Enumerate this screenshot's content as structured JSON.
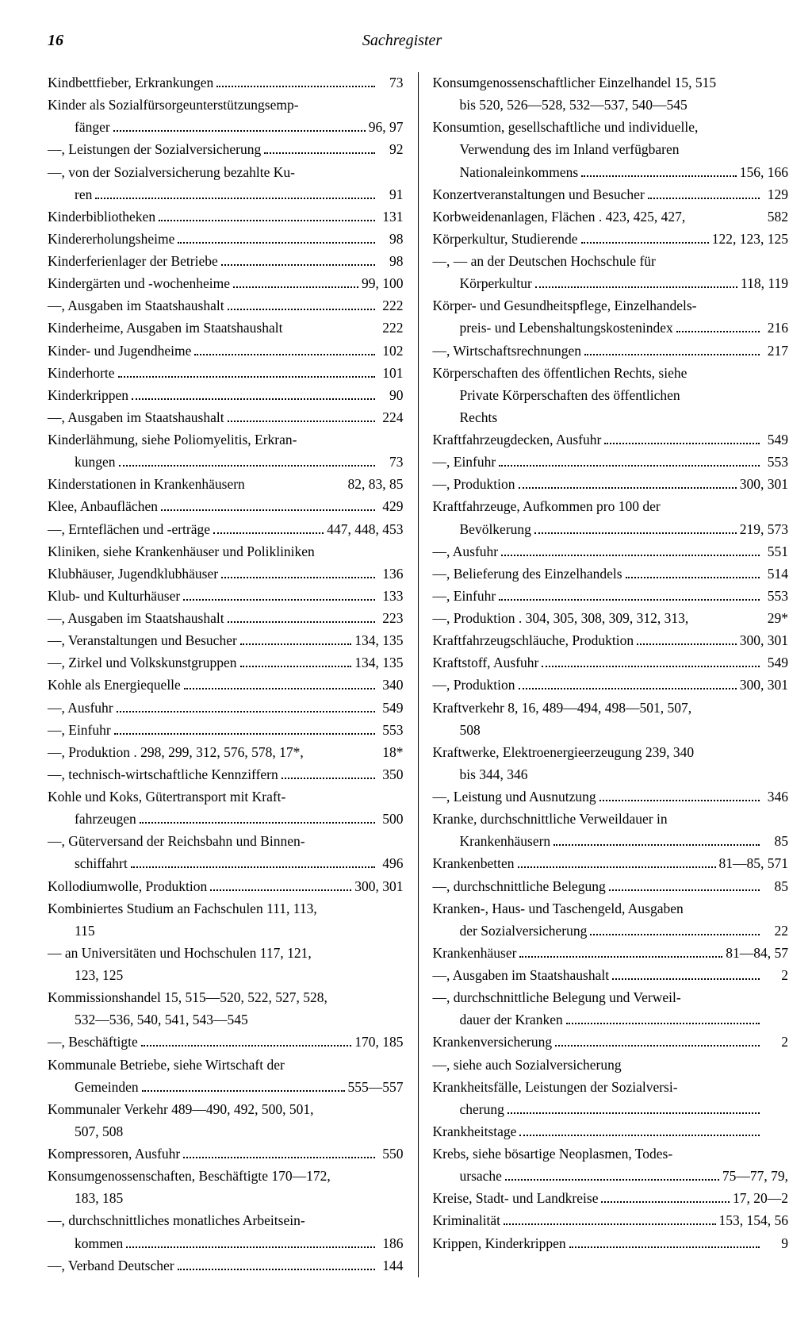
{
  "header": {
    "page": "16",
    "title": "Sachregister"
  },
  "left": [
    {
      "t": "Kindbettfieber, Erkrankungen",
      "p": "73"
    },
    {
      "t": "Kinder als Sozialfürsorgeunterstützungsemp-",
      "nf": true
    },
    {
      "t": "fänger",
      "p": "96, 97",
      "i": true
    },
    {
      "t": "—, Leistungen der Sozialversicherung",
      "p": "92"
    },
    {
      "t": "—, von der Sozialversicherung bezahlte Ku-",
      "nf": true
    },
    {
      "t": "ren",
      "p": "91",
      "i": true
    },
    {
      "t": "Kinderbibliotheken",
      "p": "131"
    },
    {
      "t": "Kindererholungsheime",
      "p": "98"
    },
    {
      "t": "Kinderferienlager der Betriebe",
      "p": "98"
    },
    {
      "t": "Kindergärten und -wochenheime",
      "p": "99, 100"
    },
    {
      "t": "—, Ausgaben im Staatshaushalt",
      "p": "222"
    },
    {
      "t": "Kinderheime, Ausgaben im Staatshaushalt",
      "p": "222",
      "nd": true
    },
    {
      "t": "Kinder- und Jugendheime",
      "p": "102"
    },
    {
      "t": "Kinderhorte",
      "p": "101"
    },
    {
      "t": "Kinderkrippen",
      "p": "90"
    },
    {
      "t": "—, Ausgaben im Staatshaushalt",
      "p": "224"
    },
    {
      "t": "Kinderlähmung, siehe Poliomyelitis, Erkran-",
      "nf": true
    },
    {
      "t": "kungen",
      "p": "73",
      "i": true
    },
    {
      "t": "Kinderstationen in Krankenhäusern",
      "p": "82, 83, 85",
      "nd": true
    },
    {
      "t": "Klee, Anbauflächen",
      "p": "429"
    },
    {
      "t": "—, Ernteflächen und -erträge",
      "p": "447, 448, 453"
    },
    {
      "t": "Kliniken, siehe Krankenhäuser und Polikliniken",
      "nf": true
    },
    {
      "t": "Klubhäuser, Jugendklubhäuser",
      "p": "136"
    },
    {
      "t": "Klub- und Kulturhäuser",
      "p": "133"
    },
    {
      "t": "—, Ausgaben im Staatshaushalt",
      "p": "223"
    },
    {
      "t": "—, Veranstaltungen und Besucher",
      "p": "134, 135"
    },
    {
      "t": "—, Zirkel und Volkskunstgruppen",
      "p": "134, 135"
    },
    {
      "t": "Kohle als Energiequelle",
      "p": "340"
    },
    {
      "t": "—, Ausfuhr",
      "p": "549"
    },
    {
      "t": "—, Einfuhr",
      "p": "553"
    },
    {
      "t": "—, Produktion . 298, 299, 312, 576, 578, 17*,",
      "p": "18*",
      "nd": true
    },
    {
      "t": "—, technisch-wirtschaftliche Kennziffern",
      "p": "350"
    },
    {
      "t": "Kohle und Koks, Gütertransport mit Kraft-",
      "nf": true
    },
    {
      "t": "fahrzeugen",
      "p": "500",
      "i": true
    },
    {
      "t": "—, Güterversand der Reichsbahn und Binnen-",
      "nf": true
    },
    {
      "t": "schiffahrt",
      "p": "496",
      "i": true
    },
    {
      "t": "Kollodiumwolle, Produktion",
      "p": "300, 301"
    },
    {
      "t": "Kombiniertes Studium an Fachschulen  111,  113,",
      "nf": true
    },
    {
      "t": "115",
      "nf": true,
      "i": true
    },
    {
      "t": "— an Universitäten und Hochschulen 117, 121,",
      "nf": true
    },
    {
      "t": "123, 125",
      "nf": true,
      "i": true
    },
    {
      "t": "Kommissionshandel 15, 515—520, 522, 527, 528,",
      "nf": true
    },
    {
      "t": "532—536, 540, 541, 543—545",
      "nf": true,
      "i": true
    },
    {
      "t": "—, Beschäftigte",
      "p": "170, 185"
    },
    {
      "t": "Kommunale Betriebe, siehe Wirtschaft der",
      "nf": true
    },
    {
      "t": "Gemeinden",
      "p": "555—557",
      "i": true
    },
    {
      "t": "Kommunaler Verkehr 489—490, 492, 500, 501,",
      "nf": true
    },
    {
      "t": "507, 508",
      "nf": true,
      "i": true
    },
    {
      "t": "Kompressoren, Ausfuhr",
      "p": "550"
    },
    {
      "t": "Konsumgenossenschaften, Beschäftigte 170—172,",
      "nf": true
    },
    {
      "t": "183, 185",
      "nf": true,
      "i": true
    },
    {
      "t": "—, durchschnittliches monatliches Arbeitsein-",
      "nf": true
    },
    {
      "t": "kommen",
      "p": "186",
      "i": true
    },
    {
      "t": "—, Verband Deutscher",
      "p": "144"
    }
  ],
  "right": [
    {
      "t": "Konsumgenossenschaftlicher Einzelhandel 15, 515",
      "nf": true
    },
    {
      "t": "bis 520, 526—528, 532—537, 540—545",
      "nf": true,
      "i": true
    },
    {
      "t": "Konsumtion, gesellschaftliche und individuelle,",
      "nf": true
    },
    {
      "t": "Verwendung des im Inland verfügbaren",
      "nf": true,
      "i": true
    },
    {
      "t": "Nationaleinkommens",
      "p": "156, 166",
      "i": true
    },
    {
      "t": "Konzertveranstaltungen und Besucher",
      "p": "129"
    },
    {
      "t": "Korbweidenanlagen, Flächen . 423, 425, 427,",
      "p": "582",
      "nd": true
    },
    {
      "t": "Körperkultur, Studierende",
      "p": "122, 123, 125"
    },
    {
      "t": "—, — an der Deutschen Hochschule für",
      "nf": true
    },
    {
      "t": "Körperkultur",
      "p": "118, 119",
      "i": true
    },
    {
      "t": "Körper- und Gesundheitspflege, Einzelhandels-",
      "nf": true
    },
    {
      "t": "preis- und Lebenshaltungskostenindex",
      "p": "216",
      "i": true
    },
    {
      "t": "—, Wirtschaftsrechnungen",
      "p": "217"
    },
    {
      "t": "Körperschaften des öffentlichen Rechts, siehe",
      "nf": true
    },
    {
      "t": "Private Körperschaften des öffentlichen",
      "nf": true,
      "i": true
    },
    {
      "t": "Rechts",
      "nf": true,
      "i": true
    },
    {
      "t": "Kraftfahrzeugdecken, Ausfuhr",
      "p": "549"
    },
    {
      "t": "—, Einfuhr",
      "p": "553"
    },
    {
      "t": "—, Produktion",
      "p": "300, 301"
    },
    {
      "t": "Kraftfahrzeuge, Aufkommen pro 100 der",
      "nf": true
    },
    {
      "t": "Bevölkerung",
      "p": "219, 573",
      "i": true
    },
    {
      "t": "—, Ausfuhr",
      "p": "551"
    },
    {
      "t": "—, Belieferung des Einzelhandels",
      "p": "514"
    },
    {
      "t": "—, Einfuhr",
      "p": "553"
    },
    {
      "t": "—, Produktion . 304, 305, 308, 309, 312, 313,",
      "p": "29*",
      "nd": true
    },
    {
      "t": "Kraftfahrzeugschläuche, Produktion",
      "p": "300, 301"
    },
    {
      "t": "Kraftstoff, Ausfuhr",
      "p": "549"
    },
    {
      "t": "—, Produktion",
      "p": "300, 301"
    },
    {
      "t": "Kraftverkehr 8, 16, 489—494, 498—501, 507,",
      "nf": true
    },
    {
      "t": "508",
      "nf": true,
      "i": true
    },
    {
      "t": "Kraftwerke, Elektroenergieerzeugung 239, 340",
      "nf": true
    },
    {
      "t": "bis 344, 346",
      "nf": true,
      "i": true
    },
    {
      "t": "—, Leistung und Ausnutzung",
      "p": "346"
    },
    {
      "t": "Kranke, durchschnittliche Verweildauer in",
      "nf": true
    },
    {
      "t": "Krankenhäusern",
      "p": "85",
      "i": true
    },
    {
      "t": "Krankenbetten",
      "p": "81—85, 571"
    },
    {
      "t": "—, durchschnittliche Belegung",
      "p": "85"
    },
    {
      "t": "Kranken-, Haus- und Taschengeld, Ausgaben",
      "nf": true
    },
    {
      "t": "der Sozialversicherung",
      "p": "22",
      "i": true
    },
    {
      "t": "Krankenhäuser",
      "p": "81—84, 57"
    },
    {
      "t": "—, Ausgaben im Staatshaushalt",
      "p": "2"
    },
    {
      "t": "—, durchschnittliche Belegung und Verweil-",
      "nf": true
    },
    {
      "t": "dauer der Kranken",
      "p": "",
      "i": true
    },
    {
      "t": "Krankenversicherung",
      "p": "2"
    },
    {
      "t": "—, siehe auch Sozialversicherung",
      "nf": true
    },
    {
      "t": "Krankheitsfälle, Leistungen der Sozialversi-",
      "nf": true
    },
    {
      "t": "cherung",
      "p": "",
      "i": true
    },
    {
      "t": "Krankheitstage",
      "p": ""
    },
    {
      "t": "Krebs, siehe bösartige Neoplasmen, Todes-",
      "nf": true
    },
    {
      "t": "ursache",
      "p": "75—77, 79,",
      "i": true
    },
    {
      "t": "Kreise, Stadt- und Landkreise",
      "p": "17, 20—2"
    },
    {
      "t": "Kriminalität",
      "p": "153, 154, 56"
    },
    {
      "t": "Krippen, Kinderkrippen",
      "p": "9"
    }
  ]
}
